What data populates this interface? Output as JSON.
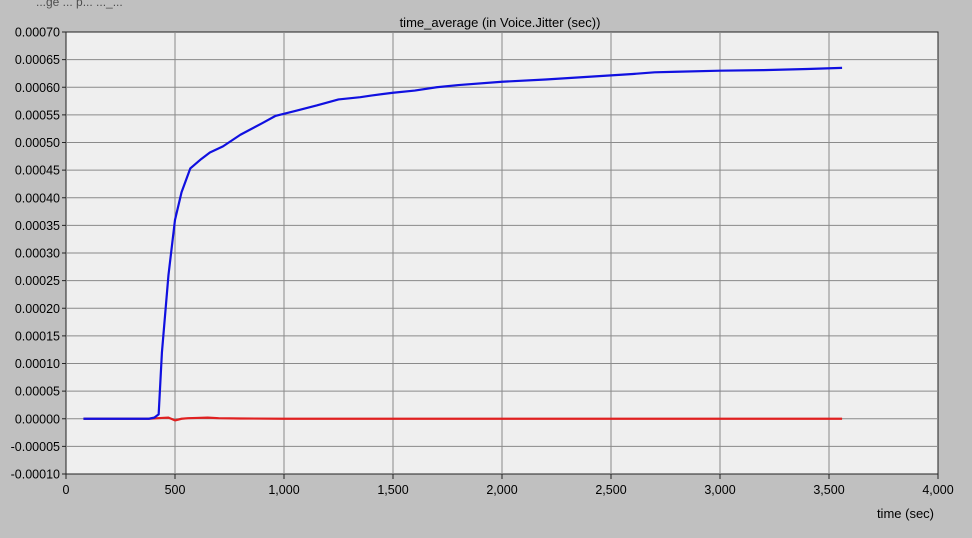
{
  "window": {
    "partial_header": "...ge ... p... ..._..."
  },
  "chart_data": {
    "type": "line",
    "title": "time_average (in Voice.Jitter (sec))",
    "xlabel": "time (sec)",
    "ylabel": "",
    "xlim": [
      0,
      4000
    ],
    "ylim": [
      -0.0001,
      0.0007
    ],
    "grid": true,
    "legend": "none",
    "x_ticks": [
      {
        "value": 0,
        "label": "0"
      },
      {
        "value": 500,
        "label": "500"
      },
      {
        "value": 1000,
        "label": "1,000"
      },
      {
        "value": 1500,
        "label": "1,500"
      },
      {
        "value": 2000,
        "label": "2,000"
      },
      {
        "value": 2500,
        "label": "2,500"
      },
      {
        "value": 3000,
        "label": "3,000"
      },
      {
        "value": 3500,
        "label": "3,500"
      },
      {
        "value": 4000,
        "label": "4,000"
      }
    ],
    "y_ticks": [
      {
        "value": 0.0007,
        "label": "0.00070"
      },
      {
        "value": 0.00065,
        "label": "0.00065"
      },
      {
        "value": 0.0006,
        "label": "0.00060"
      },
      {
        "value": 0.00055,
        "label": "0.00055"
      },
      {
        "value": 0.0005,
        "label": "0.00050"
      },
      {
        "value": 0.00045,
        "label": "0.00045"
      },
      {
        "value": 0.0004,
        "label": "0.00040"
      },
      {
        "value": 0.00035,
        "label": "0.00035"
      },
      {
        "value": 0.0003,
        "label": "0.00030"
      },
      {
        "value": 0.00025,
        "label": "0.00025"
      },
      {
        "value": 0.0002,
        "label": "0.00020"
      },
      {
        "value": 0.00015,
        "label": "0.00015"
      },
      {
        "value": 0.0001,
        "label": "0.00010"
      },
      {
        "value": 5e-05,
        "label": "0.00005"
      },
      {
        "value": 0.0,
        "label": "0.00000"
      },
      {
        "value": -5e-05,
        "label": "-0.00005"
      },
      {
        "value": -0.0001,
        "label": "-0.00010"
      }
    ],
    "series": [
      {
        "color": "#1010e0",
        "x": [
          80,
          200,
          300,
          380,
          405,
          425,
          440,
          470,
          500,
          530,
          570,
          620,
          660,
          720,
          800,
          900,
          960,
          1050,
          1150,
          1250,
          1350,
          1400,
          1500,
          1600,
          1700,
          1800,
          2000,
          2200,
          2400,
          2600,
          2700,
          2800,
          3000,
          3200,
          3400,
          3560
        ],
        "y": [
          0.0,
          0.0,
          0.0,
          0.0,
          2e-06,
          8e-06,
          0.00012,
          0.00026,
          0.00036,
          0.00041,
          0.000453,
          0.00047,
          0.000482,
          0.000493,
          0.000514,
          0.000535,
          0.000548,
          0.000557,
          0.000567,
          0.000578,
          0.000582,
          0.000585,
          0.00059,
          0.000594,
          0.0006,
          0.000604,
          0.00061,
          0.000614,
          0.000619,
          0.000624,
          0.000627,
          0.000628,
          0.00063,
          0.000631,
          0.000633,
          0.000635
        ]
      },
      {
        "color": "#e02020",
        "x": [
          80,
          200,
          380,
          440,
          470,
          500,
          530,
          560,
          600,
          650,
          700,
          800,
          1000,
          1200,
          1500,
          2000,
          2500,
          3000,
          3560
        ],
        "y": [
          0.0,
          0.0,
          0.0,
          1.5e-06,
          2e-06,
          -3e-06,
          0.0,
          1e-06,
          1.5e-06,
          2e-06,
          1e-06,
          5e-07,
          0.0,
          0.0,
          0.0,
          0.0,
          0.0,
          0.0,
          0.0
        ]
      }
    ]
  }
}
